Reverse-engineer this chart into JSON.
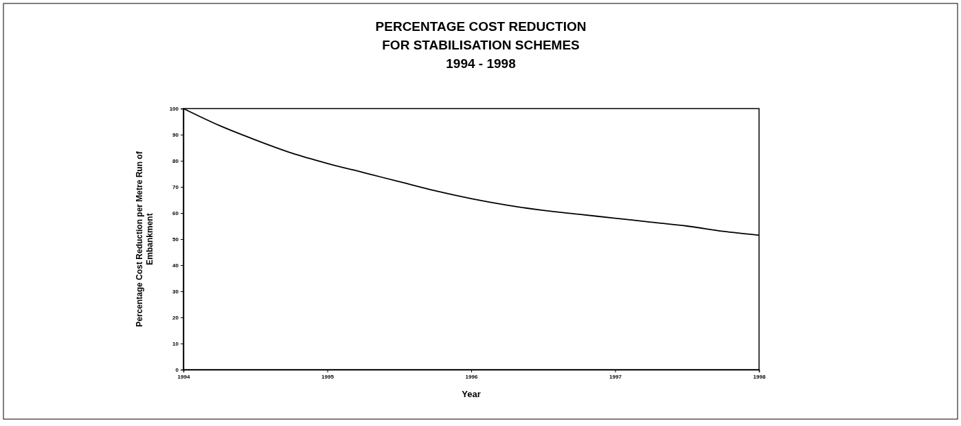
{
  "chart_data": {
    "type": "line",
    "title": "PERCENTAGE COST REDUCTION\nFOR STABILISATION SCHEMES\n1994 - 1998",
    "xlabel": "Year",
    "ylabel": "Percentage Cost Reduction per Metre Run of\nEmbankment",
    "x": [
      1994,
      1994.25,
      1994.5,
      1994.75,
      1995,
      1995.25,
      1995.5,
      1995.75,
      1996,
      1996.25,
      1996.5,
      1996.75,
      1997,
      1997.25,
      1997.5,
      1997.75,
      1998
    ],
    "series": [
      {
        "color": "#000000",
        "values": [
          100,
          93.5,
          88,
          83,
          79,
          75.5,
          72,
          68.5,
          65.5,
          63,
          61,
          59.5,
          58,
          56.5,
          55,
          53,
          51.5
        ]
      }
    ],
    "xlim": [
      1994,
      1998
    ],
    "xticks": [
      1994,
      1995,
      1996,
      1997,
      1998
    ],
    "ylim": [
      0,
      100
    ],
    "yticks": [
      0,
      10,
      20,
      30,
      40,
      50,
      60,
      70,
      80,
      90,
      100
    ],
    "grid": false,
    "marker": "none",
    "line_style": "solid"
  }
}
